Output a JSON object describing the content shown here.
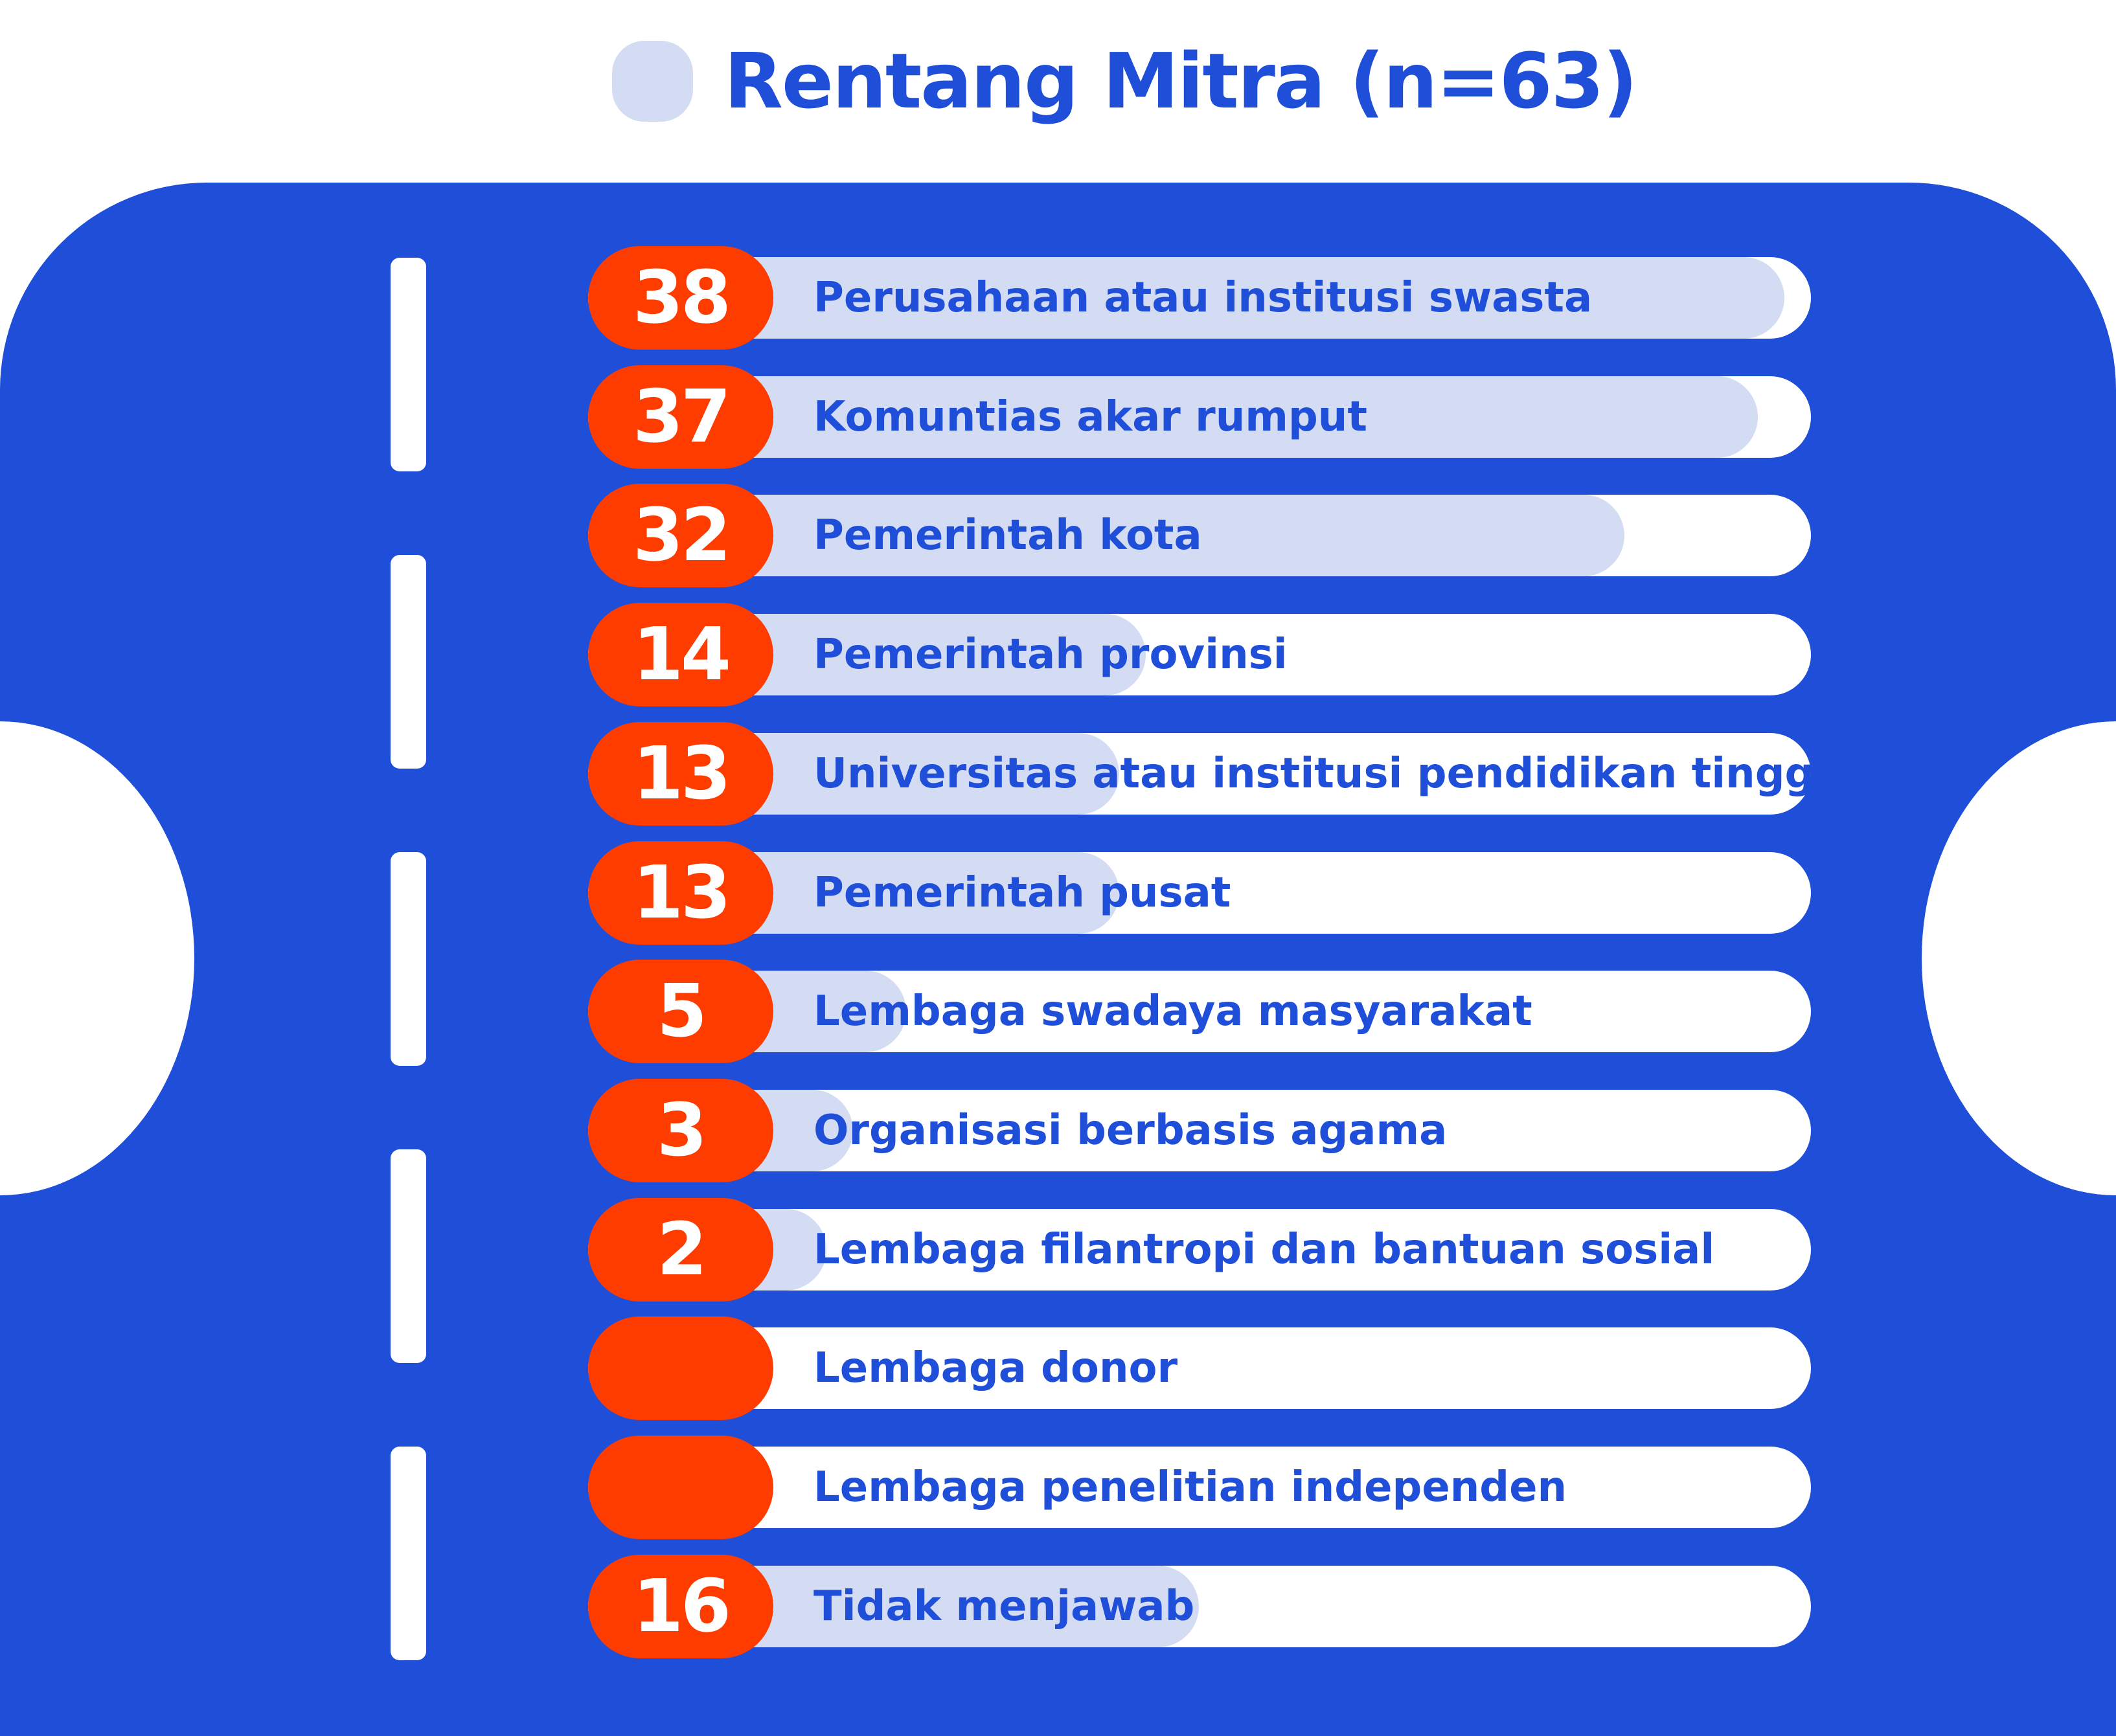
{
  "colors": {
    "panel": "#1f4fd8",
    "badge": "#ff3c00",
    "bar_fill": "#d4dcf4",
    "bar_track": "#ffffff",
    "text": "#1f4fd8"
  },
  "legend": {
    "title": "Rentang Mitra (n=63)"
  },
  "chart_data": {
    "type": "bar",
    "orientation": "horizontal",
    "title": "Rentang Mitra (n=63)",
    "xlim": [
      0,
      39
    ],
    "categories": [
      "Perusahaan atau institusi swasta",
      "Komuntias akar rumput",
      "Pemerintah kota",
      "Pemerintah provinsi",
      "Universitas atau institusi pendidikan tinggi",
      "Pemerintah pusat",
      "Lembaga swadaya masyarakat",
      "Organisasi berbasis agama",
      "Lembaga filantropi dan bantuan sosial",
      "Lembaga donor",
      "Lembaga penelitian independen",
      "Tidak menjawab"
    ],
    "values": [
      38,
      37,
      32,
      14,
      13,
      13,
      5,
      3,
      2,
      null,
      null,
      16
    ],
    "value_labels": [
      "38",
      "37",
      "32",
      "14",
      "13",
      "13",
      "5",
      "3",
      "2",
      "",
      "",
      "16"
    ]
  }
}
